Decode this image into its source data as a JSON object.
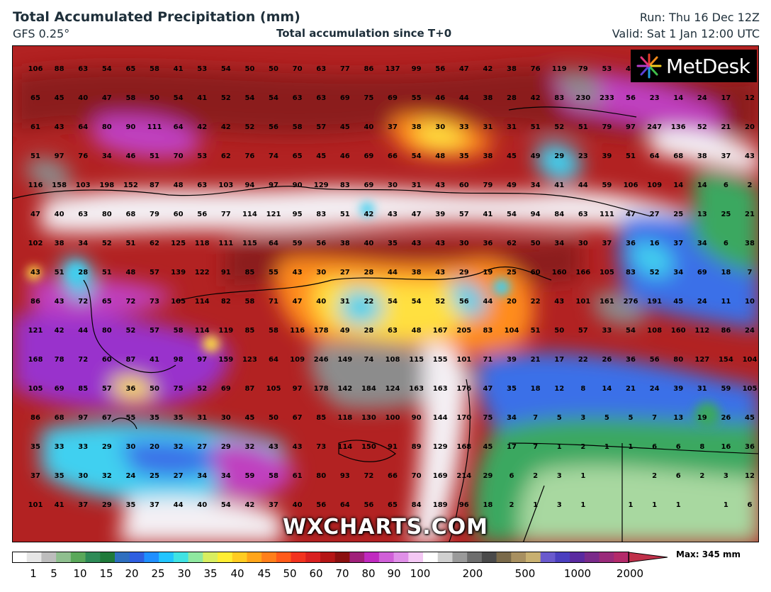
{
  "header": {
    "title": "Total Accumulated Precipitation (mm)",
    "model": "GFS 0.25°",
    "subtitle": "Total accumulation since T+0",
    "run": "Run: Thu 16 Dec 12Z",
    "valid": "Valid: Sat 1 Jan 12:00 UTC"
  },
  "logo": {
    "text": "MetDesk"
  },
  "watermark": "WXCHARTS.COM",
  "legend": {
    "max_label": "Max: 345 mm",
    "ticks": [
      "1",
      "5",
      "10",
      "15",
      "20",
      "25",
      "30",
      "35",
      "40",
      "45",
      "50",
      "60",
      "70",
      "80",
      "90",
      "100",
      "200",
      "500",
      "1000",
      "2000"
    ]
  },
  "colors": {
    "background": "#b22222",
    "dark_red": "#8b1a1a",
    "red": "#e0301e",
    "orange": "#ff8c1a",
    "yellow": "#ffe040",
    "cyan": "#3fd0f0",
    "blue": "#3a6fe8",
    "green": "#3aa860",
    "light_green": "#a8d8a0",
    "magenta": "#c040c0",
    "purple": "#9932cc",
    "white": "#f4f0f4",
    "grey": "#8c8c8c"
  },
  "values": [
    [
      "106",
      "88",
      "63",
      "54",
      "65",
      "58",
      "41",
      "53",
      "54",
      "50",
      "50",
      "70",
      "63",
      "77",
      "86",
      "137",
      "99",
      "56",
      "47",
      "42",
      "38",
      "76",
      "119",
      "79",
      "53",
      "45",
      "",
      ""
    ],
    [
      "65",
      "45",
      "40",
      "47",
      "58",
      "50",
      "54",
      "41",
      "52",
      "54",
      "54",
      "63",
      "63",
      "69",
      "75",
      "69",
      "55",
      "46",
      "44",
      "38",
      "28",
      "42",
      "83",
      "230",
      "233",
      "56",
      "23",
      "14",
      "24",
      "17",
      "12"
    ],
    [
      "61",
      "43",
      "64",
      "80",
      "90",
      "111",
      "64",
      "42",
      "42",
      "52",
      "56",
      "58",
      "57",
      "45",
      "40",
      "37",
      "38",
      "30",
      "33",
      "31",
      "31",
      "51",
      "52",
      "51",
      "79",
      "97",
      "247",
      "136",
      "52",
      "21",
      "20"
    ],
    [
      "51",
      "97",
      "76",
      "34",
      "46",
      "51",
      "70",
      "53",
      "62",
      "76",
      "74",
      "65",
      "45",
      "46",
      "69",
      "66",
      "54",
      "48",
      "35",
      "38",
      "45",
      "49",
      "29",
      "23",
      "39",
      "51",
      "64",
      "68",
      "38",
      "37",
      "43"
    ],
    [
      "116",
      "158",
      "103",
      "198",
      "152",
      "87",
      "48",
      "63",
      "103",
      "94",
      "97",
      "90",
      "129",
      "83",
      "69",
      "30",
      "31",
      "43",
      "60",
      "79",
      "49",
      "34",
      "41",
      "44",
      "59",
      "106",
      "109",
      "14",
      "14",
      "6",
      "2"
    ],
    [
      "47",
      "40",
      "63",
      "80",
      "68",
      "79",
      "60",
      "56",
      "77",
      "114",
      "121",
      "95",
      "83",
      "51",
      "42",
      "43",
      "47",
      "39",
      "57",
      "41",
      "54",
      "94",
      "84",
      "63",
      "111",
      "47",
      "27",
      "25",
      "13",
      "25",
      "21"
    ],
    [
      "102",
      "38",
      "34",
      "52",
      "51",
      "62",
      "125",
      "118",
      "111",
      "115",
      "64",
      "59",
      "56",
      "38",
      "40",
      "35",
      "43",
      "43",
      "30",
      "36",
      "62",
      "50",
      "34",
      "30",
      "37",
      "36",
      "16",
      "37",
      "34",
      "6",
      "38"
    ],
    [
      "43",
      "51",
      "28",
      "51",
      "48",
      "57",
      "139",
      "122",
      "91",
      "85",
      "55",
      "43",
      "30",
      "27",
      "28",
      "44",
      "38",
      "43",
      "29",
      "19",
      "25",
      "60",
      "160",
      "166",
      "105",
      "83",
      "52",
      "34",
      "69",
      "18",
      "7"
    ],
    [
      "86",
      "43",
      "72",
      "65",
      "72",
      "73",
      "105",
      "114",
      "82",
      "58",
      "71",
      "47",
      "40",
      "31",
      "22",
      "54",
      "54",
      "52",
      "56",
      "44",
      "20",
      "22",
      "43",
      "101",
      "161",
      "276",
      "191",
      "45",
      "24",
      "11",
      "10"
    ],
    [
      "121",
      "42",
      "44",
      "80",
      "52",
      "57",
      "58",
      "114",
      "119",
      "85",
      "58",
      "116",
      "178",
      "49",
      "28",
      "63",
      "48",
      "167",
      "205",
      "83",
      "104",
      "51",
      "50",
      "57",
      "33",
      "54",
      "108",
      "160",
      "112",
      "86",
      "24"
    ],
    [
      "168",
      "78",
      "72",
      "60",
      "87",
      "41",
      "98",
      "97",
      "159",
      "123",
      "64",
      "109",
      "246",
      "149",
      "74",
      "108",
      "115",
      "155",
      "101",
      "71",
      "39",
      "21",
      "17",
      "22",
      "26",
      "36",
      "56",
      "80",
      "127",
      "154",
      "104"
    ],
    [
      "105",
      "69",
      "85",
      "57",
      "36",
      "50",
      "75",
      "52",
      "69",
      "87",
      "105",
      "97",
      "178",
      "142",
      "184",
      "124",
      "163",
      "163",
      "176",
      "47",
      "35",
      "18",
      "12",
      "8",
      "14",
      "21",
      "24",
      "39",
      "31",
      "59",
      "105"
    ],
    [
      "86",
      "68",
      "97",
      "67",
      "55",
      "35",
      "35",
      "31",
      "30",
      "45",
      "50",
      "67",
      "85",
      "118",
      "130",
      "100",
      "90",
      "144",
      "170",
      "75",
      "34",
      "7",
      "5",
      "3",
      "5",
      "5",
      "7",
      "13",
      "19",
      "26",
      "45"
    ],
    [
      "35",
      "33",
      "33",
      "29",
      "30",
      "20",
      "32",
      "27",
      "29",
      "32",
      "43",
      "43",
      "73",
      "114",
      "150",
      "91",
      "89",
      "129",
      "168",
      "45",
      "17",
      "7",
      "1",
      "2",
      "1",
      "1",
      "6",
      "6",
      "8",
      "16",
      "36"
    ],
    [
      "37",
      "35",
      "30",
      "32",
      "24",
      "25",
      "27",
      "34",
      "34",
      "59",
      "58",
      "61",
      "80",
      "93",
      "72",
      "66",
      "70",
      "169",
      "214",
      "29",
      "6",
      "2",
      "3",
      "1",
      "",
      "",
      "2",
      "6",
      "2",
      "3",
      "12"
    ],
    [
      "101",
      "41",
      "37",
      "29",
      "35",
      "37",
      "44",
      "40",
      "54",
      "42",
      "37",
      "40",
      "56",
      "64",
      "56",
      "65",
      "84",
      "189",
      "96",
      "18",
      "2",
      "1",
      "3",
      "1",
      "",
      "1",
      "1",
      "1",
      "",
      "1",
      "6"
    ]
  ]
}
